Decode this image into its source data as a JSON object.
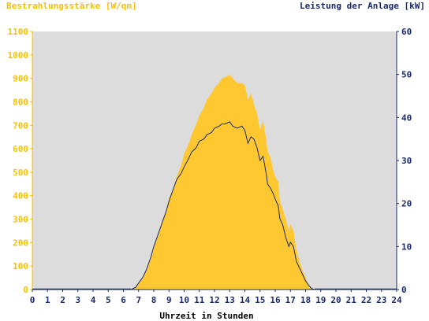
{
  "chart_data": {
    "type": "area",
    "ylabel_left": "Bestrahlungsstärke [W/qm]",
    "ylabel_right": "Leistung der Anlage [kW]",
    "xlabel": "Uhrzeit in Stunden",
    "xlim": [
      0,
      24
    ],
    "ylim_left": [
      0,
      1100
    ],
    "ylim_right": [
      0,
      60
    ],
    "x_ticks": [
      "0",
      "1",
      "2",
      "3",
      "4",
      "5",
      "6",
      "7",
      "8",
      "9",
      "10",
      "11",
      "12",
      "13",
      "14",
      "15",
      "16",
      "17",
      "18",
      "19",
      "20",
      "21",
      "22",
      "23",
      "24"
    ],
    "y_left_ticks": [
      "0",
      "100",
      "200",
      "300",
      "400",
      "500",
      "600",
      "700",
      "800",
      "900",
      "1000",
      "1100"
    ],
    "y_right_ticks": [
      "0",
      "10",
      "20",
      "30",
      "40",
      "50",
      "60"
    ],
    "grid": false,
    "colors": {
      "irradiance": "#ffc830",
      "power": "#1a2a6c",
      "plot_bg": "#dcdcdc",
      "left_axis": "#f5c200",
      "right_axis": "#1a2a6c"
    },
    "series": [
      {
        "name": "Bestrahlungsstärke [W/qm]",
        "axis": "left",
        "x": [
          6.5,
          6.8,
          7.0,
          7.3,
          7.5,
          7.8,
          8.0,
          8.3,
          8.5,
          8.8,
          9.0,
          9.3,
          9.5,
          9.8,
          10.0,
          10.3,
          10.5,
          10.8,
          11.0,
          11.3,
          11.5,
          11.8,
          12.0,
          12.3,
          12.5,
          12.7,
          13.0,
          13.2,
          13.5,
          13.8,
          14.0,
          14.2,
          14.4,
          14.6,
          14.8,
          15.0,
          15.2,
          15.4,
          15.5,
          15.7,
          15.9,
          16.0,
          16.2,
          16.3,
          16.5,
          16.7,
          16.9,
          17.0,
          17.2,
          17.4,
          17.6,
          17.8,
          18.0,
          18.2,
          18.4,
          18.6
        ],
        "values": [
          0,
          10,
          25,
          50,
          85,
          130,
          180,
          230,
          285,
          335,
          390,
          435,
          480,
          530,
          580,
          620,
          660,
          705,
          740,
          775,
          810,
          835,
          860,
          880,
          900,
          905,
          915,
          900,
          880,
          880,
          870,
          810,
          835,
          790,
          750,
          680,
          720,
          640,
          590,
          560,
          500,
          480,
          460,
          380,
          340,
          300,
          250,
          280,
          250,
          170,
          120,
          80,
          50,
          20,
          5,
          0
        ]
      },
      {
        "name": "Leistung der Anlage [kW]",
        "axis": "right",
        "x": [
          6.5,
          6.8,
          7.0,
          7.3,
          7.5,
          7.8,
          8.0,
          8.3,
          8.5,
          8.8,
          9.0,
          9.3,
          9.5,
          9.8,
          10.0,
          10.3,
          10.5,
          10.8,
          11.0,
          11.3,
          11.5,
          11.8,
          12.0,
          12.3,
          12.5,
          12.7,
          13.0,
          13.2,
          13.5,
          13.8,
          14.0,
          14.2,
          14.4,
          14.6,
          14.8,
          15.0,
          15.2,
          15.4,
          15.5,
          15.7,
          15.9,
          16.0,
          16.2,
          16.3,
          16.5,
          16.7,
          16.9,
          17.0,
          17.2,
          17.4,
          17.6,
          17.8,
          18.0,
          18.2,
          18.4,
          18.6
        ],
        "values": [
          0,
          0.5,
          1.5,
          3.0,
          4.5,
          7.5,
          10.0,
          13.0,
          15.0,
          18.0,
          20.5,
          23.5,
          25.5,
          27.0,
          28.5,
          30.5,
          32.0,
          33.0,
          34.5,
          35.0,
          36.0,
          36.5,
          37.5,
          38.0,
          38.5,
          38.5,
          39.0,
          38.0,
          37.5,
          38.0,
          37.0,
          34.0,
          35.5,
          35.0,
          33.0,
          30.0,
          31.0,
          27.0,
          24.5,
          23.5,
          22.0,
          21.0,
          19.5,
          16.5,
          15.0,
          12.0,
          10.0,
          11.0,
          10.0,
          6.5,
          5.0,
          3.5,
          2.0,
          1.0,
          0.2,
          0
        ]
      }
    ]
  }
}
